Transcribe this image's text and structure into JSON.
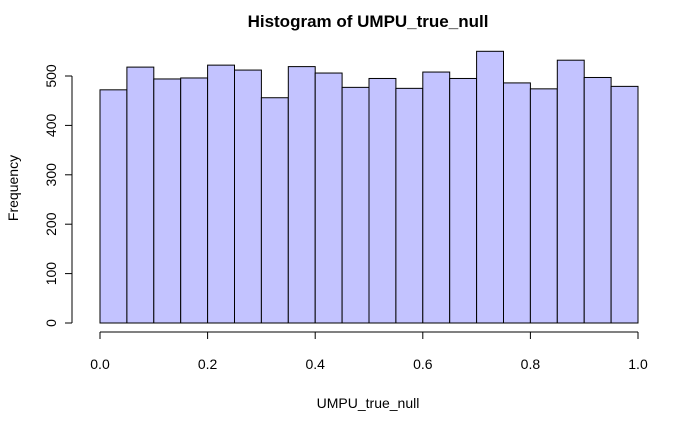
{
  "chart_data": {
    "type": "bar",
    "title": "Histogram of UMPU_true_null",
    "xlabel": "UMPU_true_null",
    "ylabel": "Frequency",
    "bin_edges": [
      0.0,
      0.05,
      0.1,
      0.15,
      0.2,
      0.25,
      0.3,
      0.35,
      0.4,
      0.45,
      0.5,
      0.55,
      0.6,
      0.65,
      0.7,
      0.75,
      0.8,
      0.85,
      0.9,
      0.95,
      1.0
    ],
    "values": [
      472,
      518,
      494,
      496,
      522,
      512,
      456,
      519,
      506,
      477,
      495,
      475,
      508,
      495,
      550,
      486,
      474,
      532,
      497,
      479
    ],
    "xlim": [
      0.0,
      1.0
    ],
    "ylim": [
      0,
      550
    ],
    "x_ticks": [
      0.0,
      0.2,
      0.4,
      0.6,
      0.8,
      1.0
    ],
    "x_tick_labels": [
      "0.0",
      "0.2",
      "0.4",
      "0.6",
      "0.8",
      "1.0"
    ],
    "y_ticks": [
      0,
      100,
      200,
      300,
      400,
      500
    ],
    "y_tick_labels": [
      "0",
      "100",
      "200",
      "300",
      "400",
      "500"
    ],
    "bar_color": "#c3c3ff",
    "grid": false,
    "legend": "none"
  }
}
